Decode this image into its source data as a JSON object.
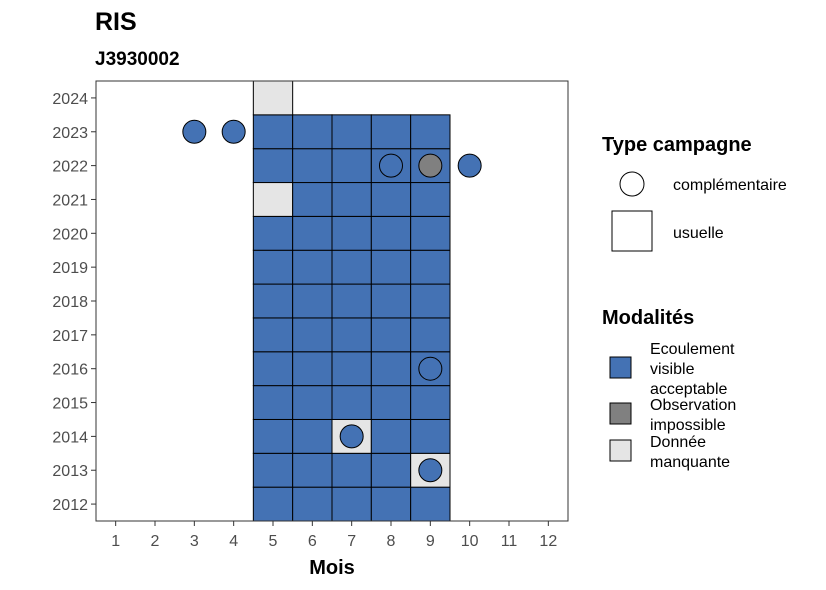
{
  "chart_data": {
    "type": "heatmap",
    "title": "RIS",
    "subtitle": "J3930002",
    "xlabel": "Mois",
    "ylabel": "",
    "x_ticks": [
      1,
      2,
      3,
      4,
      5,
      6,
      7,
      8,
      9,
      10,
      11,
      12
    ],
    "y_ticks": [
      2012,
      2013,
      2014,
      2015,
      2016,
      2017,
      2018,
      2019,
      2020,
      2021,
      2022,
      2023,
      2024
    ],
    "xlim": [
      0.5,
      12.5
    ],
    "ylim": [
      2011.5,
      2024.5
    ],
    "grid": false,
    "colors": {
      "Ecoulement visible acceptable": "#4472b4",
      "Observation impossible": "#808080",
      "Donnée manquante": "#e5e5e5"
    },
    "tiles": [
      {
        "year": 2012,
        "month": 5,
        "modalite": "Ecoulement visible acceptable"
      },
      {
        "year": 2012,
        "month": 6,
        "modalite": "Ecoulement visible acceptable"
      },
      {
        "year": 2012,
        "month": 7,
        "modalite": "Ecoulement visible acceptable"
      },
      {
        "year": 2012,
        "month": 8,
        "modalite": "Ecoulement visible acceptable"
      },
      {
        "year": 2012,
        "month": 9,
        "modalite": "Ecoulement visible acceptable"
      },
      {
        "year": 2013,
        "month": 5,
        "modalite": "Ecoulement visible acceptable"
      },
      {
        "year": 2013,
        "month": 6,
        "modalite": "Ecoulement visible acceptable"
      },
      {
        "year": 2013,
        "month": 7,
        "modalite": "Ecoulement visible acceptable"
      },
      {
        "year": 2013,
        "month": 8,
        "modalite": "Ecoulement visible acceptable"
      },
      {
        "year": 2013,
        "month": 9,
        "modalite": "Donnée manquante"
      },
      {
        "year": 2014,
        "month": 5,
        "modalite": "Ecoulement visible acceptable"
      },
      {
        "year": 2014,
        "month": 6,
        "modalite": "Ecoulement visible acceptable"
      },
      {
        "year": 2014,
        "month": 7,
        "modalite": "Donnée manquante"
      },
      {
        "year": 2014,
        "month": 8,
        "modalite": "Ecoulement visible acceptable"
      },
      {
        "year": 2014,
        "month": 9,
        "modalite": "Ecoulement visible acceptable"
      },
      {
        "year": 2015,
        "month": 5,
        "modalite": "Ecoulement visible acceptable"
      },
      {
        "year": 2015,
        "month": 6,
        "modalite": "Ecoulement visible acceptable"
      },
      {
        "year": 2015,
        "month": 7,
        "modalite": "Ecoulement visible acceptable"
      },
      {
        "year": 2015,
        "month": 8,
        "modalite": "Ecoulement visible acceptable"
      },
      {
        "year": 2015,
        "month": 9,
        "modalite": "Ecoulement visible acceptable"
      },
      {
        "year": 2016,
        "month": 5,
        "modalite": "Ecoulement visible acceptable"
      },
      {
        "year": 2016,
        "month": 6,
        "modalite": "Ecoulement visible acceptable"
      },
      {
        "year": 2016,
        "month": 7,
        "modalite": "Ecoulement visible acceptable"
      },
      {
        "year": 2016,
        "month": 8,
        "modalite": "Ecoulement visible acceptable"
      },
      {
        "year": 2016,
        "month": 9,
        "modalite": "Ecoulement visible acceptable"
      },
      {
        "year": 2017,
        "month": 5,
        "modalite": "Ecoulement visible acceptable"
      },
      {
        "year": 2017,
        "month": 6,
        "modalite": "Ecoulement visible acceptable"
      },
      {
        "year": 2017,
        "month": 7,
        "modalite": "Ecoulement visible acceptable"
      },
      {
        "year": 2017,
        "month": 8,
        "modalite": "Ecoulement visible acceptable"
      },
      {
        "year": 2017,
        "month": 9,
        "modalite": "Ecoulement visible acceptable"
      },
      {
        "year": 2018,
        "month": 5,
        "modalite": "Ecoulement visible acceptable"
      },
      {
        "year": 2018,
        "month": 6,
        "modalite": "Ecoulement visible acceptable"
      },
      {
        "year": 2018,
        "month": 7,
        "modalite": "Ecoulement visible acceptable"
      },
      {
        "year": 2018,
        "month": 8,
        "modalite": "Ecoulement visible acceptable"
      },
      {
        "year": 2018,
        "month": 9,
        "modalite": "Ecoulement visible acceptable"
      },
      {
        "year": 2019,
        "month": 5,
        "modalite": "Ecoulement visible acceptable"
      },
      {
        "year": 2019,
        "month": 6,
        "modalite": "Ecoulement visible acceptable"
      },
      {
        "year": 2019,
        "month": 7,
        "modalite": "Ecoulement visible acceptable"
      },
      {
        "year": 2019,
        "month": 8,
        "modalite": "Ecoulement visible acceptable"
      },
      {
        "year": 2019,
        "month": 9,
        "modalite": "Ecoulement visible acceptable"
      },
      {
        "year": 2020,
        "month": 5,
        "modalite": "Ecoulement visible acceptable"
      },
      {
        "year": 2020,
        "month": 6,
        "modalite": "Ecoulement visible acceptable"
      },
      {
        "year": 2020,
        "month": 7,
        "modalite": "Ecoulement visible acceptable"
      },
      {
        "year": 2020,
        "month": 8,
        "modalite": "Ecoulement visible acceptable"
      },
      {
        "year": 2020,
        "month": 9,
        "modalite": "Ecoulement visible acceptable"
      },
      {
        "year": 2021,
        "month": 5,
        "modalite": "Donnée manquante"
      },
      {
        "year": 2021,
        "month": 6,
        "modalite": "Ecoulement visible acceptable"
      },
      {
        "year": 2021,
        "month": 7,
        "modalite": "Ecoulement visible acceptable"
      },
      {
        "year": 2021,
        "month": 8,
        "modalite": "Ecoulement visible acceptable"
      },
      {
        "year": 2021,
        "month": 9,
        "modalite": "Ecoulement visible acceptable"
      },
      {
        "year": 2022,
        "month": 5,
        "modalite": "Ecoulement visible acceptable"
      },
      {
        "year": 2022,
        "month": 6,
        "modalite": "Ecoulement visible acceptable"
      },
      {
        "year": 2022,
        "month": 7,
        "modalite": "Ecoulement visible acceptable"
      },
      {
        "year": 2022,
        "month": 8,
        "modalite": "Ecoulement visible acceptable"
      },
      {
        "year": 2022,
        "month": 9,
        "modalite": "Ecoulement visible acceptable"
      },
      {
        "year": 2023,
        "month": 5,
        "modalite": "Ecoulement visible acceptable"
      },
      {
        "year": 2023,
        "month": 6,
        "modalite": "Ecoulement visible acceptable"
      },
      {
        "year": 2023,
        "month": 7,
        "modalite": "Ecoulement visible acceptable"
      },
      {
        "year": 2023,
        "month": 8,
        "modalite": "Ecoulement visible acceptable"
      },
      {
        "year": 2023,
        "month": 9,
        "modalite": "Ecoulement visible acceptable"
      },
      {
        "year": 2024,
        "month": 5,
        "modalite": "Donnée manquante"
      }
    ],
    "points": [
      {
        "year": 2023,
        "month": 3,
        "modalite": "Ecoulement visible acceptable"
      },
      {
        "year": 2023,
        "month": 4,
        "modalite": "Ecoulement visible acceptable"
      },
      {
        "year": 2022,
        "month": 8,
        "modalite": "Ecoulement visible acceptable"
      },
      {
        "year": 2022,
        "month": 9,
        "modalite": "Observation impossible"
      },
      {
        "year": 2022,
        "month": 10,
        "modalite": "Ecoulement visible acceptable"
      },
      {
        "year": 2016,
        "month": 9,
        "modalite": "Ecoulement visible acceptable"
      },
      {
        "year": 2014,
        "month": 7,
        "modalite": "Ecoulement visible acceptable"
      },
      {
        "year": 2013,
        "month": 9,
        "modalite": "Ecoulement visible acceptable"
      }
    ],
    "legend_placement": "right",
    "legend_type": {
      "title": "Type campagne",
      "items": [
        {
          "label": "complémentaire",
          "shape": "circle"
        },
        {
          "label": "usuelle",
          "shape": "square"
        }
      ]
    },
    "legend_modalites": {
      "title": "Modalités",
      "items": [
        {
          "label_lines": [
            "Ecoulement",
            "visible",
            "acceptable"
          ],
          "color": "#4472b4"
        },
        {
          "label_lines": [
            "Observation",
            "impossible"
          ],
          "color": "#808080"
        },
        {
          "label_lines": [
            "Donnée",
            "manquante"
          ],
          "color": "#e5e5e5"
        }
      ]
    }
  }
}
